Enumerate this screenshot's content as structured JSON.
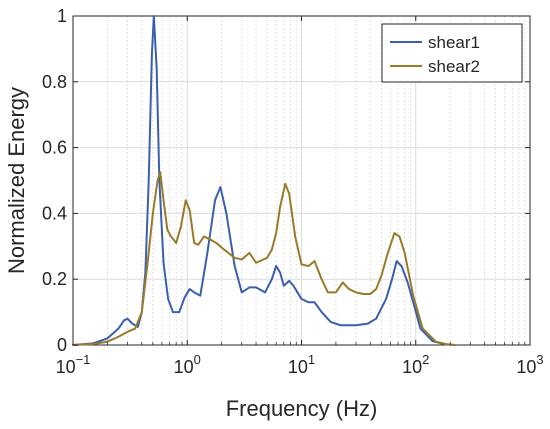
{
  "chart_data": {
    "type": "line",
    "title": "",
    "xlabel": "Frequency (Hz)",
    "ylabel": "Normalized Energy",
    "xscale": "log",
    "xlim": [
      0.1,
      1000
    ],
    "ylim": [
      0,
      1
    ],
    "x_ticks": [
      0.1,
      1,
      10,
      100,
      1000
    ],
    "x_tick_labels": [
      {
        "base": "10",
        "exp": "−1"
      },
      {
        "base": "10",
        "exp": "0"
      },
      {
        "base": "10",
        "exp": "1"
      },
      {
        "base": "10",
        "exp": "2"
      },
      {
        "base": "10",
        "exp": "3"
      }
    ],
    "y_ticks": [
      0,
      0.2,
      0.4,
      0.6,
      0.8,
      1
    ],
    "y_tick_labels": [
      "0",
      "0.2",
      "0.4",
      "0.6",
      "0.8",
      "1"
    ],
    "grid": true,
    "minor_grid": true,
    "legend_position": "top-right",
    "series": [
      {
        "name": "shear1",
        "color": "#3a5fb0",
        "points": [
          [
            0.1,
            0.0
          ],
          [
            0.15,
            0.005
          ],
          [
            0.2,
            0.02
          ],
          [
            0.25,
            0.05
          ],
          [
            0.28,
            0.075
          ],
          [
            0.3,
            0.08
          ],
          [
            0.33,
            0.065
          ],
          [
            0.37,
            0.055
          ],
          [
            0.4,
            0.1
          ],
          [
            0.43,
            0.22
          ],
          [
            0.46,
            0.5
          ],
          [
            0.49,
            0.88
          ],
          [
            0.51,
            1.0
          ],
          [
            0.54,
            0.84
          ],
          [
            0.57,
            0.5
          ],
          [
            0.62,
            0.25
          ],
          [
            0.68,
            0.14
          ],
          [
            0.75,
            0.1
          ],
          [
            0.85,
            0.1
          ],
          [
            0.95,
            0.145
          ],
          [
            1.05,
            0.17
          ],
          [
            1.15,
            0.16
          ],
          [
            1.3,
            0.15
          ],
          [
            1.5,
            0.28
          ],
          [
            1.75,
            0.44
          ],
          [
            1.95,
            0.48
          ],
          [
            2.2,
            0.4
          ],
          [
            2.6,
            0.24
          ],
          [
            3.0,
            0.16
          ],
          [
            3.5,
            0.175
          ],
          [
            4.0,
            0.175
          ],
          [
            4.8,
            0.16
          ],
          [
            5.5,
            0.2
          ],
          [
            6.0,
            0.24
          ],
          [
            6.5,
            0.22
          ],
          [
            7.0,
            0.18
          ],
          [
            7.8,
            0.195
          ],
          [
            8.5,
            0.18
          ],
          [
            10.0,
            0.14
          ],
          [
            11.5,
            0.13
          ],
          [
            13.0,
            0.13
          ],
          [
            15.0,
            0.1
          ],
          [
            18.0,
            0.07
          ],
          [
            22.0,
            0.06
          ],
          [
            30.0,
            0.06
          ],
          [
            38.0,
            0.065
          ],
          [
            45.0,
            0.08
          ],
          [
            55.0,
            0.14
          ],
          [
            62.0,
            0.2
          ],
          [
            68.0,
            0.255
          ],
          [
            75.0,
            0.24
          ],
          [
            85.0,
            0.19
          ],
          [
            95.0,
            0.13
          ],
          [
            110.0,
            0.05
          ],
          [
            140.0,
            0.012
          ],
          [
            180.0,
            0.002
          ],
          [
            220.0,
            0.0
          ]
        ]
      },
      {
        "name": "shear2",
        "color": "#9a7a2a",
        "points": [
          [
            0.1,
            0.0
          ],
          [
            0.15,
            0.003
          ],
          [
            0.2,
            0.01
          ],
          [
            0.25,
            0.025
          ],
          [
            0.3,
            0.04
          ],
          [
            0.35,
            0.05
          ],
          [
            0.4,
            0.1
          ],
          [
            0.45,
            0.25
          ],
          [
            0.5,
            0.4
          ],
          [
            0.55,
            0.5
          ],
          [
            0.58,
            0.525
          ],
          [
            0.62,
            0.44
          ],
          [
            0.67,
            0.35
          ],
          [
            0.72,
            0.33
          ],
          [
            0.8,
            0.31
          ],
          [
            0.88,
            0.36
          ],
          [
            0.97,
            0.44
          ],
          [
            1.05,
            0.41
          ],
          [
            1.15,
            0.31
          ],
          [
            1.25,
            0.305
          ],
          [
            1.4,
            0.33
          ],
          [
            1.6,
            0.32
          ],
          [
            1.8,
            0.31
          ],
          [
            2.1,
            0.29
          ],
          [
            2.6,
            0.265
          ],
          [
            3.0,
            0.26
          ],
          [
            3.5,
            0.28
          ],
          [
            4.0,
            0.25
          ],
          [
            5.0,
            0.265
          ],
          [
            5.5,
            0.29
          ],
          [
            6.0,
            0.34
          ],
          [
            6.5,
            0.42
          ],
          [
            7.2,
            0.49
          ],
          [
            7.8,
            0.46
          ],
          [
            8.8,
            0.33
          ],
          [
            10.0,
            0.245
          ],
          [
            11.5,
            0.24
          ],
          [
            13.0,
            0.255
          ],
          [
            15.0,
            0.2
          ],
          [
            17.0,
            0.16
          ],
          [
            20.0,
            0.16
          ],
          [
            23.0,
            0.19
          ],
          [
            26.0,
            0.17
          ],
          [
            30.0,
            0.16
          ],
          [
            35.0,
            0.155
          ],
          [
            40.0,
            0.155
          ],
          [
            45.0,
            0.17
          ],
          [
            50.0,
            0.21
          ],
          [
            57.0,
            0.28
          ],
          [
            65.0,
            0.34
          ],
          [
            72.0,
            0.33
          ],
          [
            80.0,
            0.28
          ],
          [
            95.0,
            0.15
          ],
          [
            115.0,
            0.05
          ],
          [
            150.0,
            0.01
          ],
          [
            190.0,
            0.002
          ],
          [
            220.0,
            0.0
          ]
        ]
      }
    ]
  }
}
